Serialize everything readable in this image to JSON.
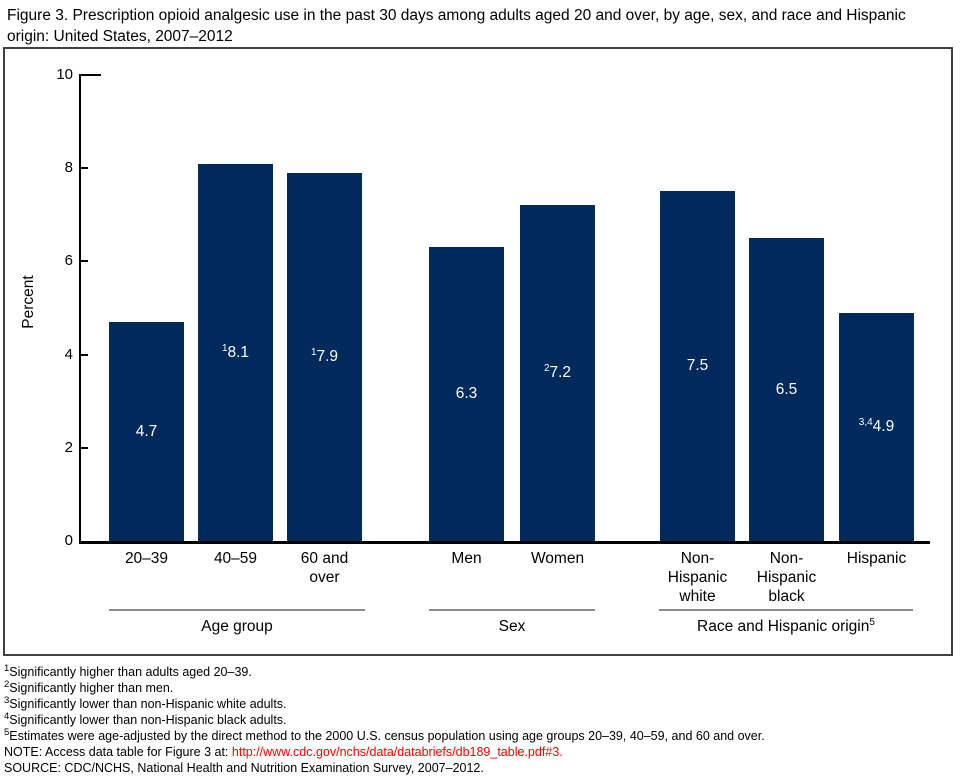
{
  "figure": {
    "title": "Figure 3. Prescription opioid analgesic use in the past 30 days among adults aged 20 and over, by age, sex, and race and Hispanic origin: United States, 2007–2012"
  },
  "chart_data": {
    "type": "bar",
    "title": "Prescription opioid analgesic use in the past 30 days among adults aged 20 and over",
    "xlabel": "",
    "ylabel": "Percent",
    "ylim": [
      0,
      10
    ],
    "yticks": [
      0,
      2,
      4,
      6,
      8,
      10
    ],
    "grid": false,
    "legend": false,
    "bar_color": "#002a5c",
    "value_label_color": "#ffffff",
    "groups": [
      {
        "label": "Age group",
        "sup": "",
        "bars": [
          {
            "category": "20–39",
            "lines": [
              "20–39"
            ],
            "value": 4.7,
            "value_sup": ""
          },
          {
            "category": "40–59",
            "lines": [
              "40–59"
            ],
            "value": 8.1,
            "value_sup": "1"
          },
          {
            "category": "60 and over",
            "lines": [
              "60 and",
              "over"
            ],
            "value": 7.9,
            "value_sup": "1"
          }
        ]
      },
      {
        "label": "Sex",
        "sup": "",
        "bars": [
          {
            "category": "Men",
            "lines": [
              "Men"
            ],
            "value": 6.3,
            "value_sup": ""
          },
          {
            "category": "Women",
            "lines": [
              "Women"
            ],
            "value": 7.2,
            "value_sup": "2"
          }
        ]
      },
      {
        "label": "Race and Hispanic origin",
        "sup": "5",
        "bars": [
          {
            "category": "Non-Hispanic white",
            "lines": [
              "Non-",
              "Hispanic",
              "white"
            ],
            "value": 7.5,
            "value_sup": ""
          },
          {
            "category": "Non-Hispanic black",
            "lines": [
              "Non-",
              "Hispanic",
              "black"
            ],
            "value": 6.5,
            "value_sup": ""
          },
          {
            "category": "Hispanic",
            "lines": [
              "Hispanic"
            ],
            "value": 4.9,
            "value_sup": "3,4"
          }
        ]
      }
    ]
  },
  "footnotes": [
    {
      "sup": "1",
      "text": "Significantly higher than adults aged 20–39."
    },
    {
      "sup": "2",
      "text": "Significantly higher than men."
    },
    {
      "sup": "3",
      "text": "Significantly lower than non-Hispanic white adults."
    },
    {
      "sup": "4",
      "text": "Significantly lower than non-Hispanic black adults."
    },
    {
      "sup": "5",
      "text": "Estimates were age-adjusted by the direct method to the 2000 U.S. census population using age groups 20–39, 40–59, and 60 and over."
    }
  ],
  "note": {
    "prefix": "NOTE: Access data table for Figure 3 at: ",
    "link": "http://www.cdc.gov/nchs/data/databriefs/db189_table.pdf#3",
    "suffix": ".",
    "link_color": "#ff0000"
  },
  "source": "SOURCE: CDC/NCHS, National Health and Nutrition Examination Survey, 2007–2012."
}
